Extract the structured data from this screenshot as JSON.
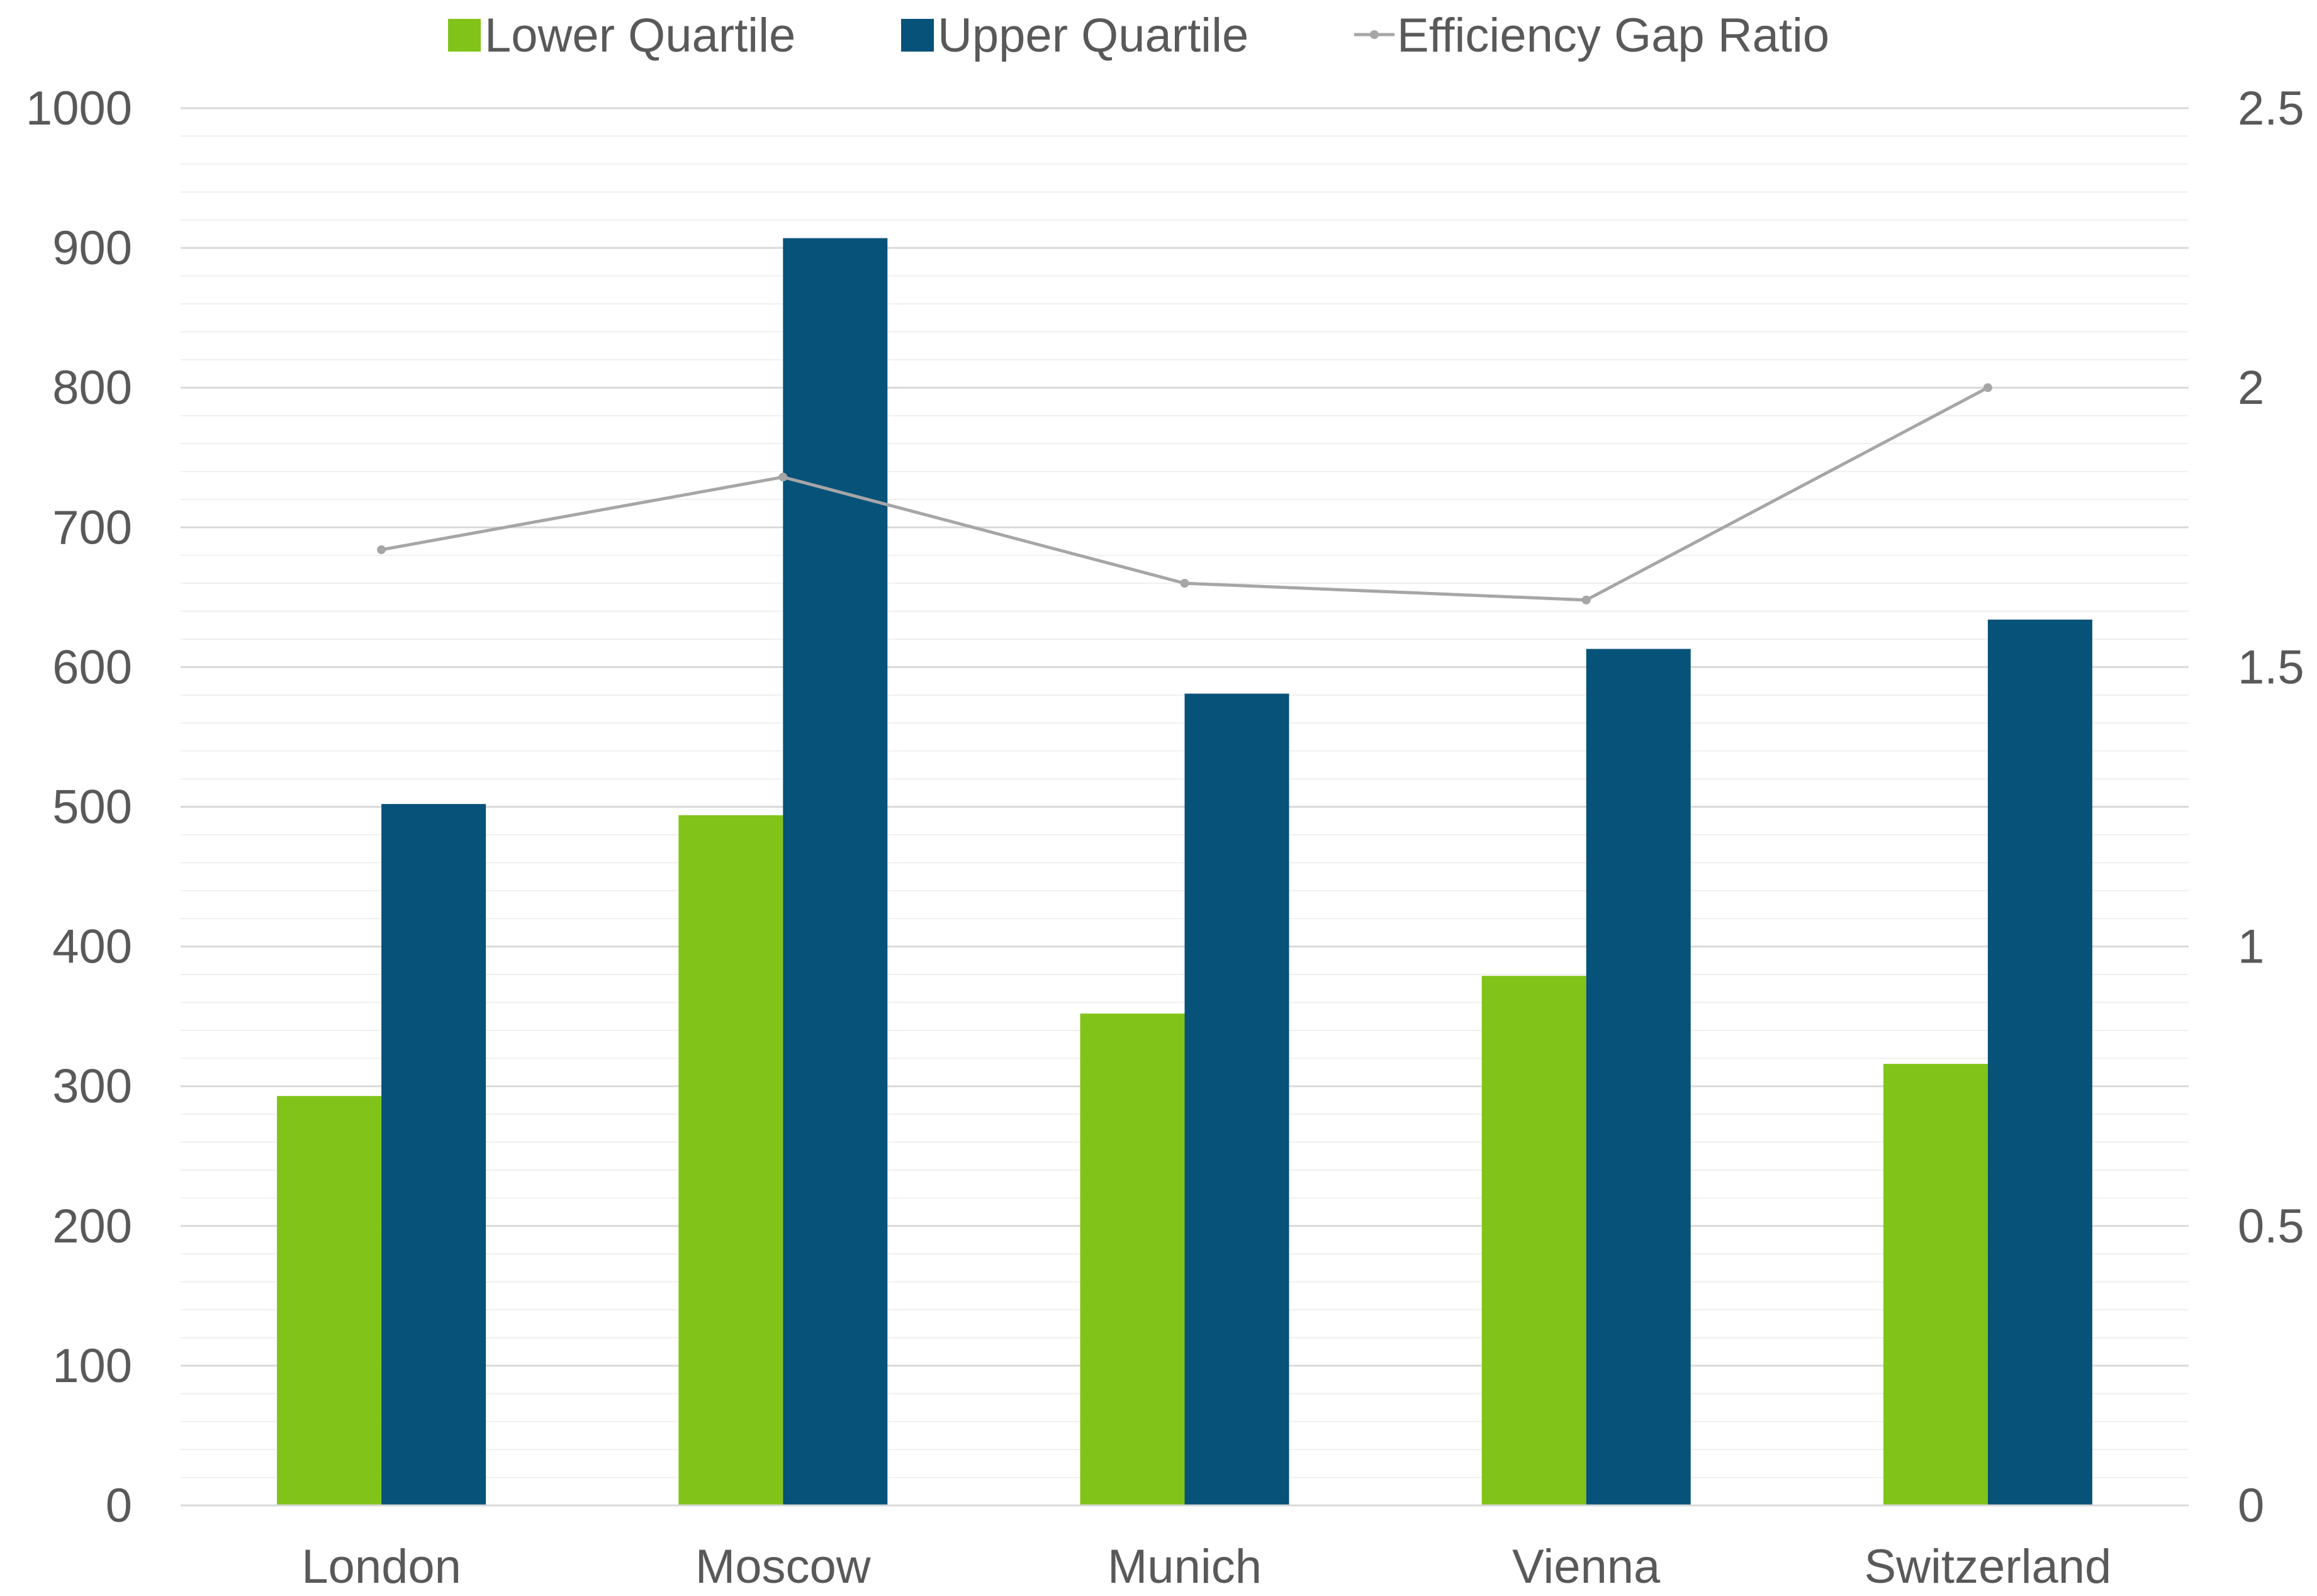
{
  "chart_data": {
    "type": "bar",
    "title": "",
    "xlabel": "",
    "ylabel": "",
    "y2label": "",
    "categories": [
      "London",
      "Moscow",
      "Munich",
      "Vienna",
      "Switzerland"
    ],
    "series": [
      {
        "name": "Lower Quartile",
        "kind": "bar",
        "axis": "left",
        "color": "#82c31a",
        "values": [
          293,
          494,
          352,
          379,
          316
        ]
      },
      {
        "name": "Upper Quartile",
        "kind": "bar",
        "axis": "left",
        "color": "#075279",
        "values": [
          502,
          907,
          581,
          613,
          634
        ]
      },
      {
        "name": "Efficiency Gap Ratio",
        "kind": "line",
        "axis": "right",
        "color": "#a6a6a6",
        "values": [
          1.71,
          1.84,
          1.65,
          1.62,
          2.0
        ]
      }
    ],
    "ylim": [
      0,
      1000
    ],
    "yticks": [
      "0",
      "100",
      "200",
      "300",
      "400",
      "500",
      "600",
      "700",
      "800",
      "900",
      "1000"
    ],
    "y2lim": [
      0,
      2.5
    ],
    "y2ticks": [
      "0",
      "0.5",
      "1",
      "1.5",
      "2",
      "2.5"
    ],
    "grid": true,
    "legend_position": "top"
  }
}
